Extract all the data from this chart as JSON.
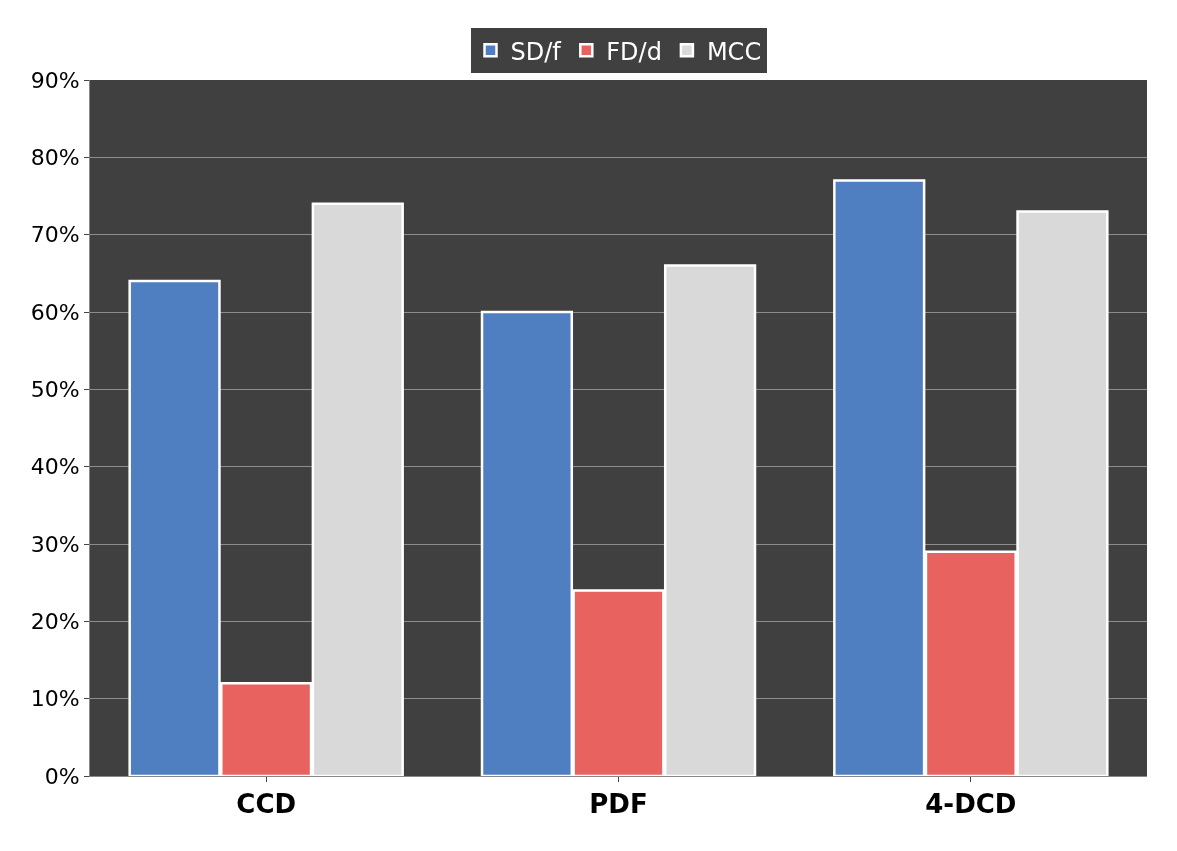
{
  "chart_data": {
    "type": "bar",
    "categories": [
      "CCD",
      "PDF",
      "4-DCD"
    ],
    "series": [
      {
        "name": "SD/f",
        "color": "#4f7fc0",
        "values": [
          0.64,
          0.6,
          0.77
        ]
      },
      {
        "name": "FD/d",
        "color": "#e8625f",
        "values": [
          0.12,
          0.24,
          0.29
        ]
      },
      {
        "name": "MCC",
        "color": "#d9d9d9",
        "values": [
          0.74,
          0.66,
          0.73
        ]
      }
    ],
    "ylim": [
      0,
      0.9
    ],
    "yticks": [
      {
        "value": 0,
        "label": "0%"
      },
      {
        "value": 0.1,
        "label": "10%"
      },
      {
        "value": 0.2,
        "label": "20%"
      },
      {
        "value": 0.3,
        "label": "30%"
      },
      {
        "value": 0.4,
        "label": "40%"
      },
      {
        "value": 0.5,
        "label": "50%"
      },
      {
        "value": 0.6,
        "label": "60%"
      },
      {
        "value": 0.7,
        "label": "70%"
      },
      {
        "value": 0.8,
        "label": "80%"
      },
      {
        "value": 0.9,
        "label": "90%"
      }
    ],
    "grid": "y",
    "legend": "top"
  }
}
